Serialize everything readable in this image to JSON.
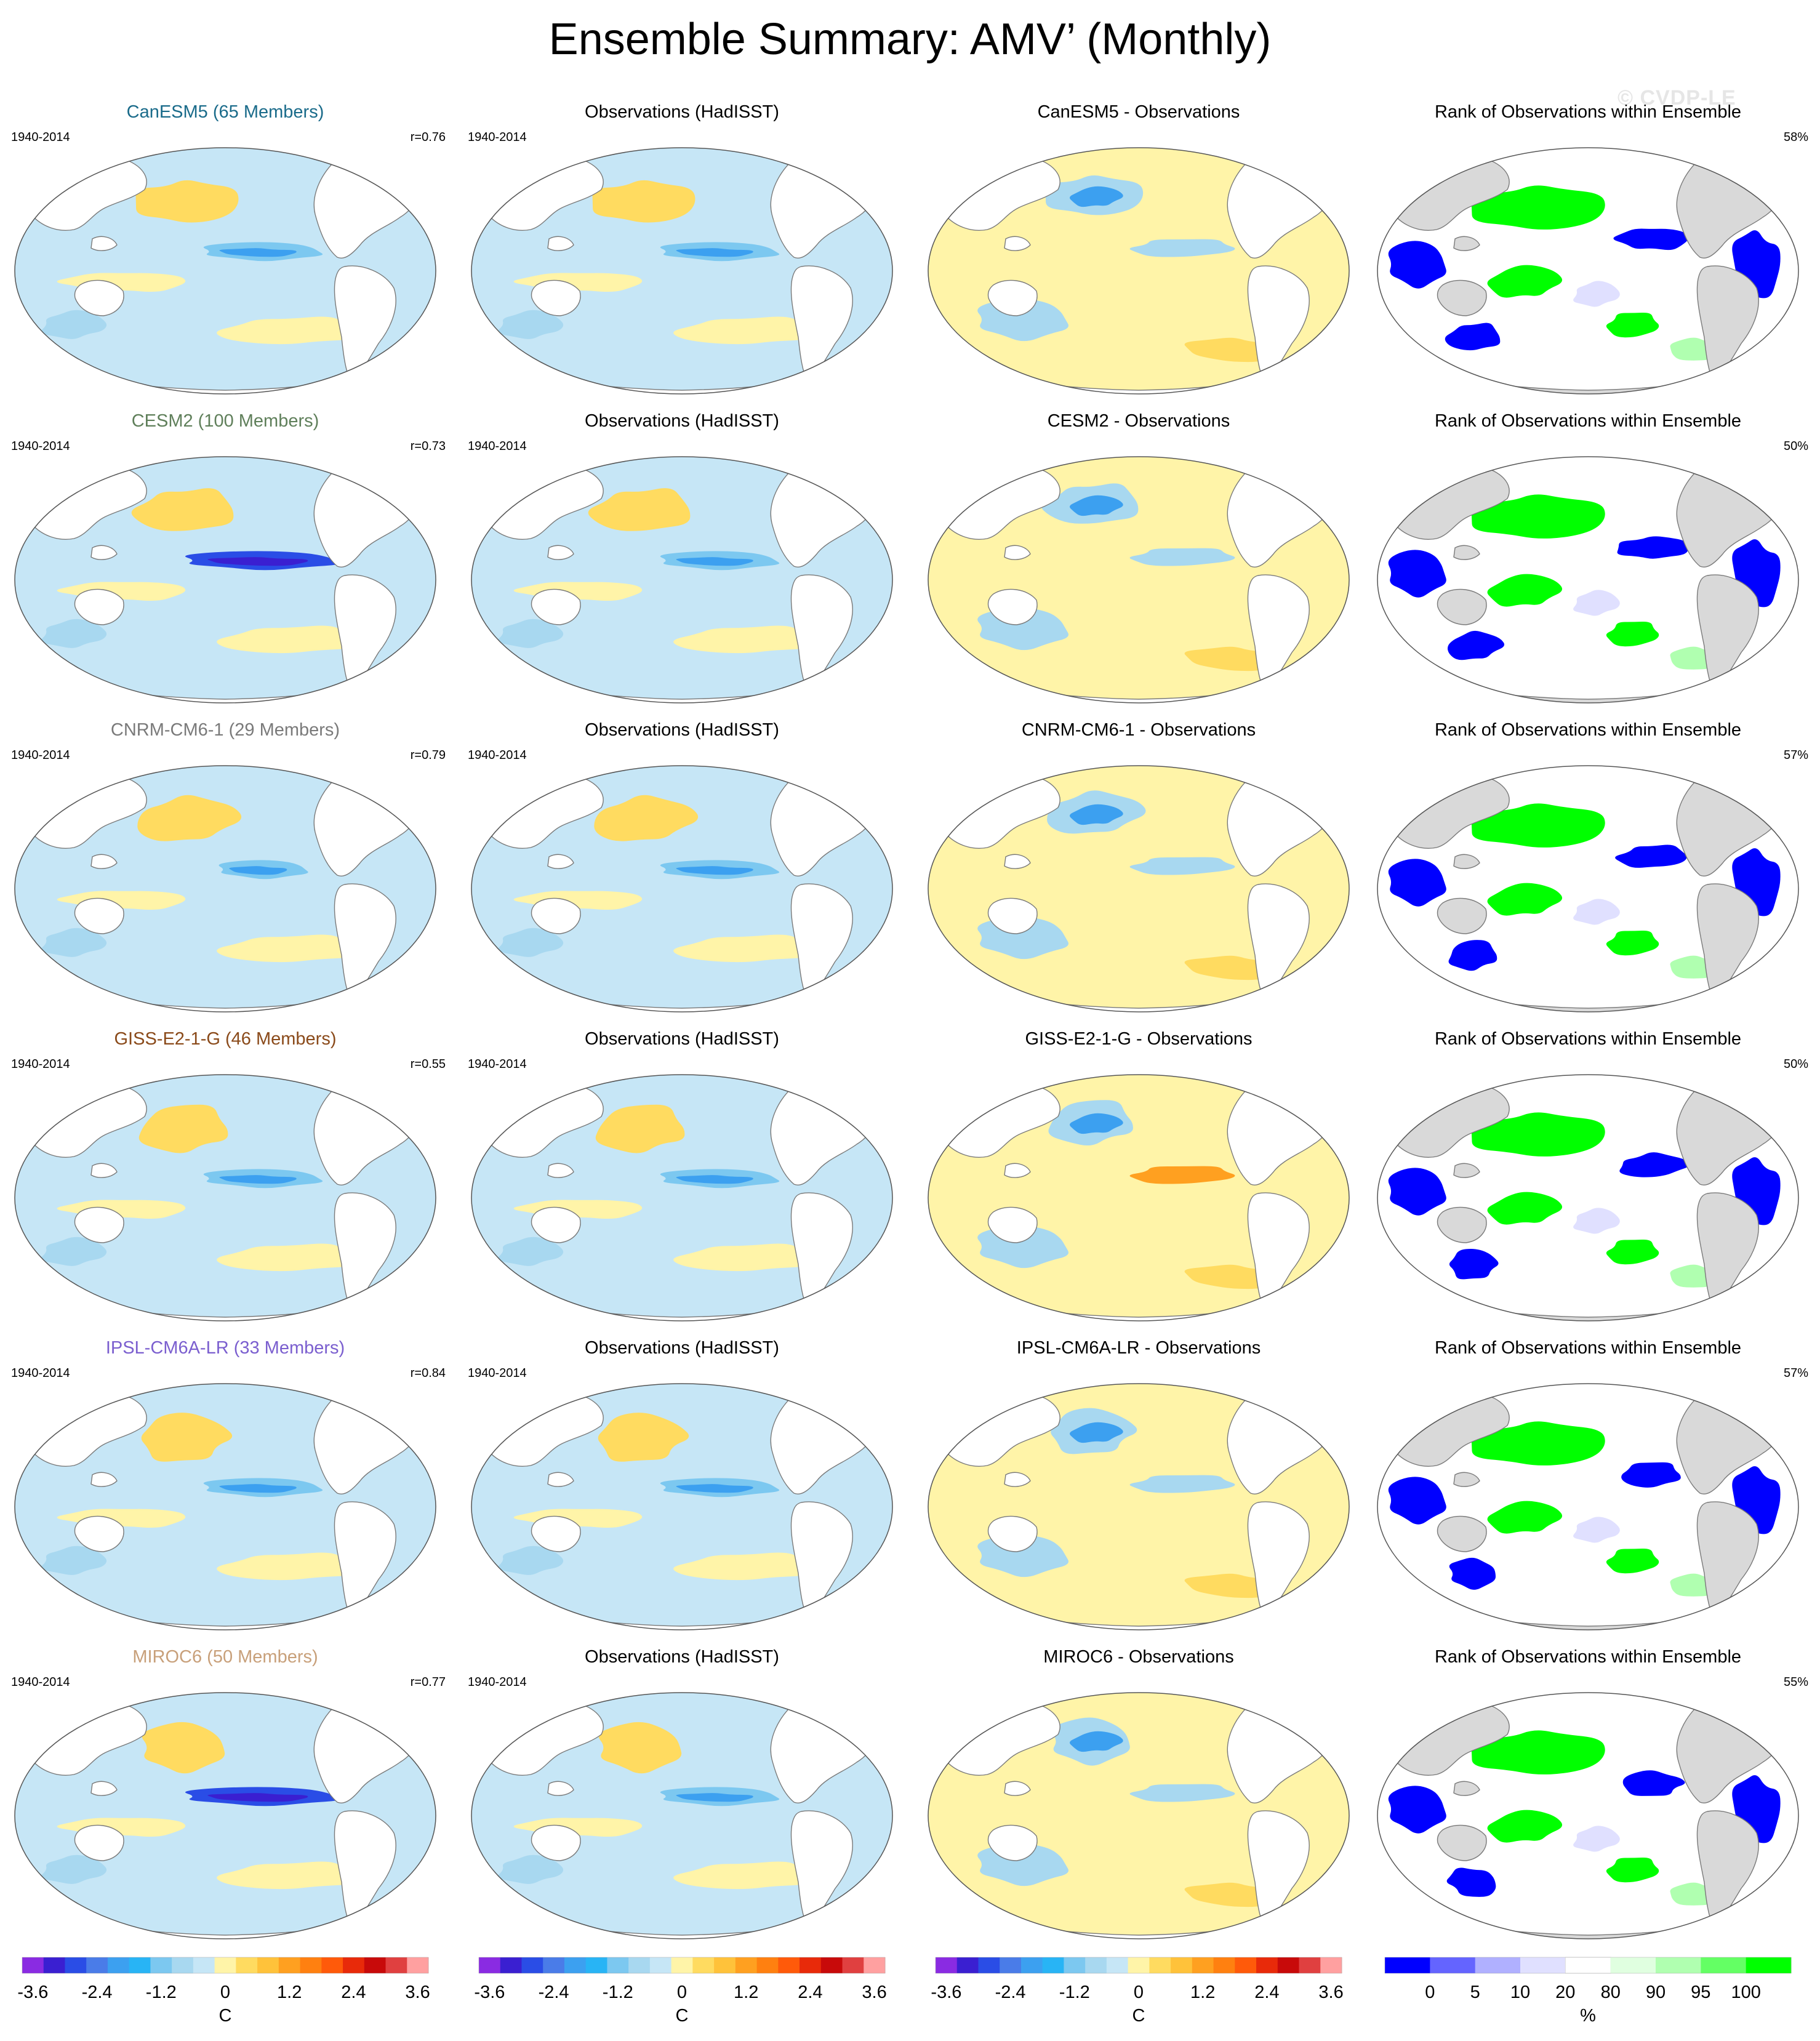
{
  "title": "Ensemble Summary: AMV’ (Monthly)",
  "watermark": "© CVDP-LE",
  "rows": [
    {
      "model": {
        "title": "CanESM5 (65 Members)",
        "title_color": "#1a6b8a",
        "period": "1940-2014",
        "r": "r=0.76",
        "style": "normal"
      },
      "obs": {
        "title": "Observations (HadISST)",
        "period": "1940-2014"
      },
      "diff": {
        "title": "CanESM5 - Observations"
      },
      "rank": {
        "title": "Rank of Observations within Ensemble",
        "pct": "58%"
      }
    },
    {
      "model": {
        "title": "CESM2 (100 Members)",
        "title_color": "#5f7f5a",
        "period": "1940-2014",
        "r": "r=0.73",
        "style": "strong"
      },
      "obs": {
        "title": "Observations (HadISST)",
        "period": "1940-2014"
      },
      "diff": {
        "title": "CESM2 - Observations"
      },
      "rank": {
        "title": "Rank of Observations within Ensemble",
        "pct": "50%"
      }
    },
    {
      "model": {
        "title": "CNRM-CM6-1 (29 Members)",
        "title_color": "#7a7a7a",
        "period": "1940-2014",
        "r": "r=0.79",
        "style": "weak"
      },
      "obs": {
        "title": "Observations (HadISST)",
        "period": "1940-2014"
      },
      "diff": {
        "title": "CNRM-CM6-1 - Observations"
      },
      "rank": {
        "title": "Rank of Observations within Ensemble",
        "pct": "57%"
      }
    },
    {
      "model": {
        "title": "GISS-E2-1-G (46 Members)",
        "title_color": "#8a4a1a",
        "period": "1940-2014",
        "r": "r=0.55",
        "style": "normal"
      },
      "obs": {
        "title": "Observations (HadISST)",
        "period": "1940-2014"
      },
      "diff": {
        "title": "GISS-E2-1-G - Observations"
      },
      "rank": {
        "title": "Rank of Observations within Ensemble",
        "pct": "50%"
      }
    },
    {
      "model": {
        "title": "IPSL-CM6A-LR (33 Members)",
        "title_color": "#7b5fcf",
        "period": "1940-2014",
        "r": "r=0.84",
        "style": "normal"
      },
      "obs": {
        "title": "Observations (HadISST)",
        "period": "1940-2014"
      },
      "diff": {
        "title": "IPSL-CM6A-LR - Observations"
      },
      "rank": {
        "title": "Rank of Observations within Ensemble",
        "pct": "57%"
      }
    },
    {
      "model": {
        "title": "MIROC6 (50 Members)",
        "title_color": "#c8a07a",
        "period": "1940-2014",
        "r": "r=0.77",
        "style": "strong"
      },
      "obs": {
        "title": "Observations (HadISST)",
        "period": "1940-2014"
      },
      "diff": {
        "title": "MIROC6 - Observations"
      },
      "rank": {
        "title": "Rank of Observations within Ensemble",
        "pct": "55%"
      }
    }
  ],
  "colorbars": {
    "sst": {
      "colors": [
        "#8a2be2",
        "#3a1fd1",
        "#2a4de6",
        "#4a7ce8",
        "#3ca0f0",
        "#28b4f5",
        "#7cc8f0",
        "#a8d8f0",
        "#c6e6f6",
        "#fff4a8",
        "#ffdb60",
        "#ffc23a",
        "#ffa020",
        "#ff8010",
        "#ff5a0a",
        "#e82a0a",
        "#c80a0a",
        "#e04040",
        "#ffa0a0"
      ],
      "tick_labels": [
        "-3.6",
        "-2.4",
        "-1.2",
        "0",
        "1.2",
        "2.4",
        "3.6"
      ],
      "tick_values": [
        -3.6,
        -2.4,
        -1.2,
        0,
        1.2,
        2.4,
        3.6
      ],
      "unit": "C"
    },
    "rank": {
      "colors": [
        "#0000ff",
        "#6464ff",
        "#b0b0ff",
        "#e0e0ff",
        "#ffffff",
        "#e0ffe0",
        "#b0ffb0",
        "#64ff64",
        "#00ff00"
      ],
      "tick_labels": [
        "0",
        "5",
        "10",
        "20",
        "80",
        "90",
        "95",
        "100"
      ],
      "unit": "%"
    }
  }
}
